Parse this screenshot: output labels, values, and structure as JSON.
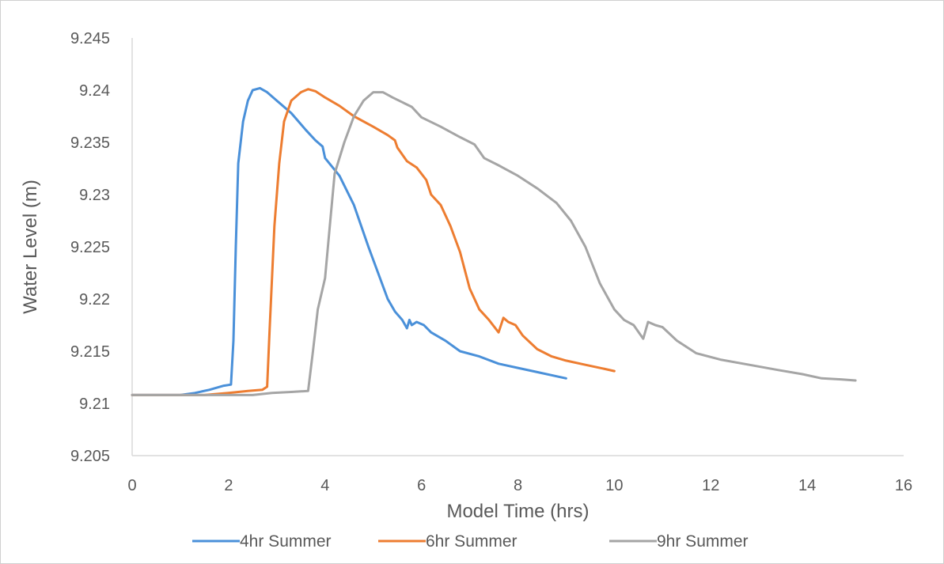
{
  "chart_data": {
    "type": "line",
    "title": "",
    "xlabel": "Model Time (hrs)",
    "ylabel": "Water Level (m)",
    "xlim": [
      0,
      16
    ],
    "ylim": [
      9.205,
      9.245
    ],
    "x_ticks": [
      0,
      2,
      4,
      6,
      8,
      10,
      12,
      14,
      16
    ],
    "x_tick_labels": [
      "0",
      "2",
      "4",
      "6",
      "8",
      "10",
      "12",
      "14",
      "16"
    ],
    "y_ticks": [
      9.205,
      9.21,
      9.215,
      9.22,
      9.225,
      9.23,
      9.235,
      9.24,
      9.245
    ],
    "y_tick_labels": [
      "9.205",
      "9.21",
      "9.215",
      "9.22",
      "9.225",
      "9.23",
      "9.235",
      "9.24",
      "9.245"
    ],
    "grid": false,
    "legend_position": "bottom",
    "series": [
      {
        "name": "4hr Summer",
        "color": "#4a90d9",
        "points": [
          [
            0,
            9.2108
          ],
          [
            1.0,
            9.2108
          ],
          [
            1.3,
            9.211
          ],
          [
            1.6,
            9.2113
          ],
          [
            1.9,
            9.2117
          ],
          [
            2.05,
            9.2118
          ],
          [
            2.1,
            9.216
          ],
          [
            2.15,
            9.225
          ],
          [
            2.2,
            9.233
          ],
          [
            2.3,
            9.237
          ],
          [
            2.4,
            9.239
          ],
          [
            2.5,
            9.24
          ],
          [
            2.65,
            9.2402
          ],
          [
            2.8,
            9.2398
          ],
          [
            3.0,
            9.239
          ],
          [
            3.3,
            9.2378
          ],
          [
            3.6,
            9.2362
          ],
          [
            3.8,
            9.2352
          ],
          [
            3.95,
            9.2346
          ],
          [
            4.0,
            9.2335
          ],
          [
            4.3,
            9.2318
          ],
          [
            4.6,
            9.229
          ],
          [
            4.9,
            9.225
          ],
          [
            5.1,
            9.2225
          ],
          [
            5.3,
            9.22
          ],
          [
            5.45,
            9.2188
          ],
          [
            5.6,
            9.218
          ],
          [
            5.7,
            9.2172
          ],
          [
            5.75,
            9.218
          ],
          [
            5.8,
            9.2175
          ],
          [
            5.9,
            9.2178
          ],
          [
            6.05,
            9.2175
          ],
          [
            6.2,
            9.2168
          ],
          [
            6.5,
            9.216
          ],
          [
            6.8,
            9.215
          ],
          [
            7.2,
            9.2145
          ],
          [
            7.6,
            9.2138
          ],
          [
            8.0,
            9.2134
          ],
          [
            8.4,
            9.213
          ],
          [
            8.8,
            9.2126
          ],
          [
            9.0,
            9.2124
          ]
        ]
      },
      {
        "name": "6hr Summer",
        "color": "#ed7d31",
        "points": [
          [
            0,
            9.2108
          ],
          [
            1.5,
            9.2108
          ],
          [
            2.0,
            9.211
          ],
          [
            2.4,
            9.2112
          ],
          [
            2.7,
            9.2113
          ],
          [
            2.8,
            9.2116
          ],
          [
            2.85,
            9.217
          ],
          [
            2.95,
            9.227
          ],
          [
            3.05,
            9.233
          ],
          [
            3.15,
            9.237
          ],
          [
            3.3,
            9.239
          ],
          [
            3.5,
            9.2398
          ],
          [
            3.65,
            9.2401
          ],
          [
            3.8,
            9.2399
          ],
          [
            4.0,
            9.2393
          ],
          [
            4.3,
            9.2385
          ],
          [
            4.6,
            9.2375
          ],
          [
            5.0,
            9.2365
          ],
          [
            5.3,
            9.2357
          ],
          [
            5.45,
            9.2352
          ],
          [
            5.5,
            9.2345
          ],
          [
            5.7,
            9.2332
          ],
          [
            5.9,
            9.2326
          ],
          [
            6.1,
            9.2314
          ],
          [
            6.2,
            9.23
          ],
          [
            6.4,
            9.229
          ],
          [
            6.6,
            9.227
          ],
          [
            6.8,
            9.2245
          ],
          [
            7.0,
            9.221
          ],
          [
            7.2,
            9.219
          ],
          [
            7.4,
            9.218
          ],
          [
            7.6,
            9.2168
          ],
          [
            7.7,
            9.2182
          ],
          [
            7.8,
            9.2178
          ],
          [
            7.95,
            9.2175
          ],
          [
            8.1,
            9.2165
          ],
          [
            8.4,
            9.2152
          ],
          [
            8.7,
            9.2145
          ],
          [
            9.0,
            9.2141
          ],
          [
            9.4,
            9.2137
          ],
          [
            9.8,
            9.2133
          ],
          [
            10.0,
            9.2131
          ]
        ]
      },
      {
        "name": "9hr Summer",
        "color": "#a5a5a5",
        "points": [
          [
            0,
            9.2108
          ],
          [
            2.0,
            9.2108
          ],
          [
            2.5,
            9.2108
          ],
          [
            2.9,
            9.211
          ],
          [
            3.3,
            9.2111
          ],
          [
            3.65,
            9.2112
          ],
          [
            3.75,
            9.215
          ],
          [
            3.85,
            9.219
          ],
          [
            4.0,
            9.222
          ],
          [
            4.1,
            9.227
          ],
          [
            4.2,
            9.232
          ],
          [
            4.4,
            9.235
          ],
          [
            4.6,
            9.2375
          ],
          [
            4.8,
            9.239
          ],
          [
            5.0,
            9.2398
          ],
          [
            5.2,
            9.2398
          ],
          [
            5.4,
            9.2393
          ],
          [
            5.8,
            9.2384
          ],
          [
            6.0,
            9.2374
          ],
          [
            6.4,
            9.2365
          ],
          [
            6.8,
            9.2355
          ],
          [
            7.1,
            9.2348
          ],
          [
            7.3,
            9.2335
          ],
          [
            7.6,
            9.2328
          ],
          [
            8.0,
            9.2318
          ],
          [
            8.4,
            9.2306
          ],
          [
            8.8,
            9.2292
          ],
          [
            9.1,
            9.2275
          ],
          [
            9.4,
            9.225
          ],
          [
            9.7,
            9.2215
          ],
          [
            10.0,
            9.219
          ],
          [
            10.2,
            9.218
          ],
          [
            10.4,
            9.2175
          ],
          [
            10.6,
            9.2162
          ],
          [
            10.7,
            9.2178
          ],
          [
            10.85,
            9.2175
          ],
          [
            11.0,
            9.2173
          ],
          [
            11.3,
            9.216
          ],
          [
            11.7,
            9.2148
          ],
          [
            12.2,
            9.2142
          ],
          [
            12.8,
            9.2137
          ],
          [
            13.4,
            9.2132
          ],
          [
            13.9,
            9.2128
          ],
          [
            14.3,
            9.2124
          ],
          [
            14.7,
            9.2123
          ],
          [
            15.0,
            9.2122
          ]
        ]
      }
    ]
  }
}
